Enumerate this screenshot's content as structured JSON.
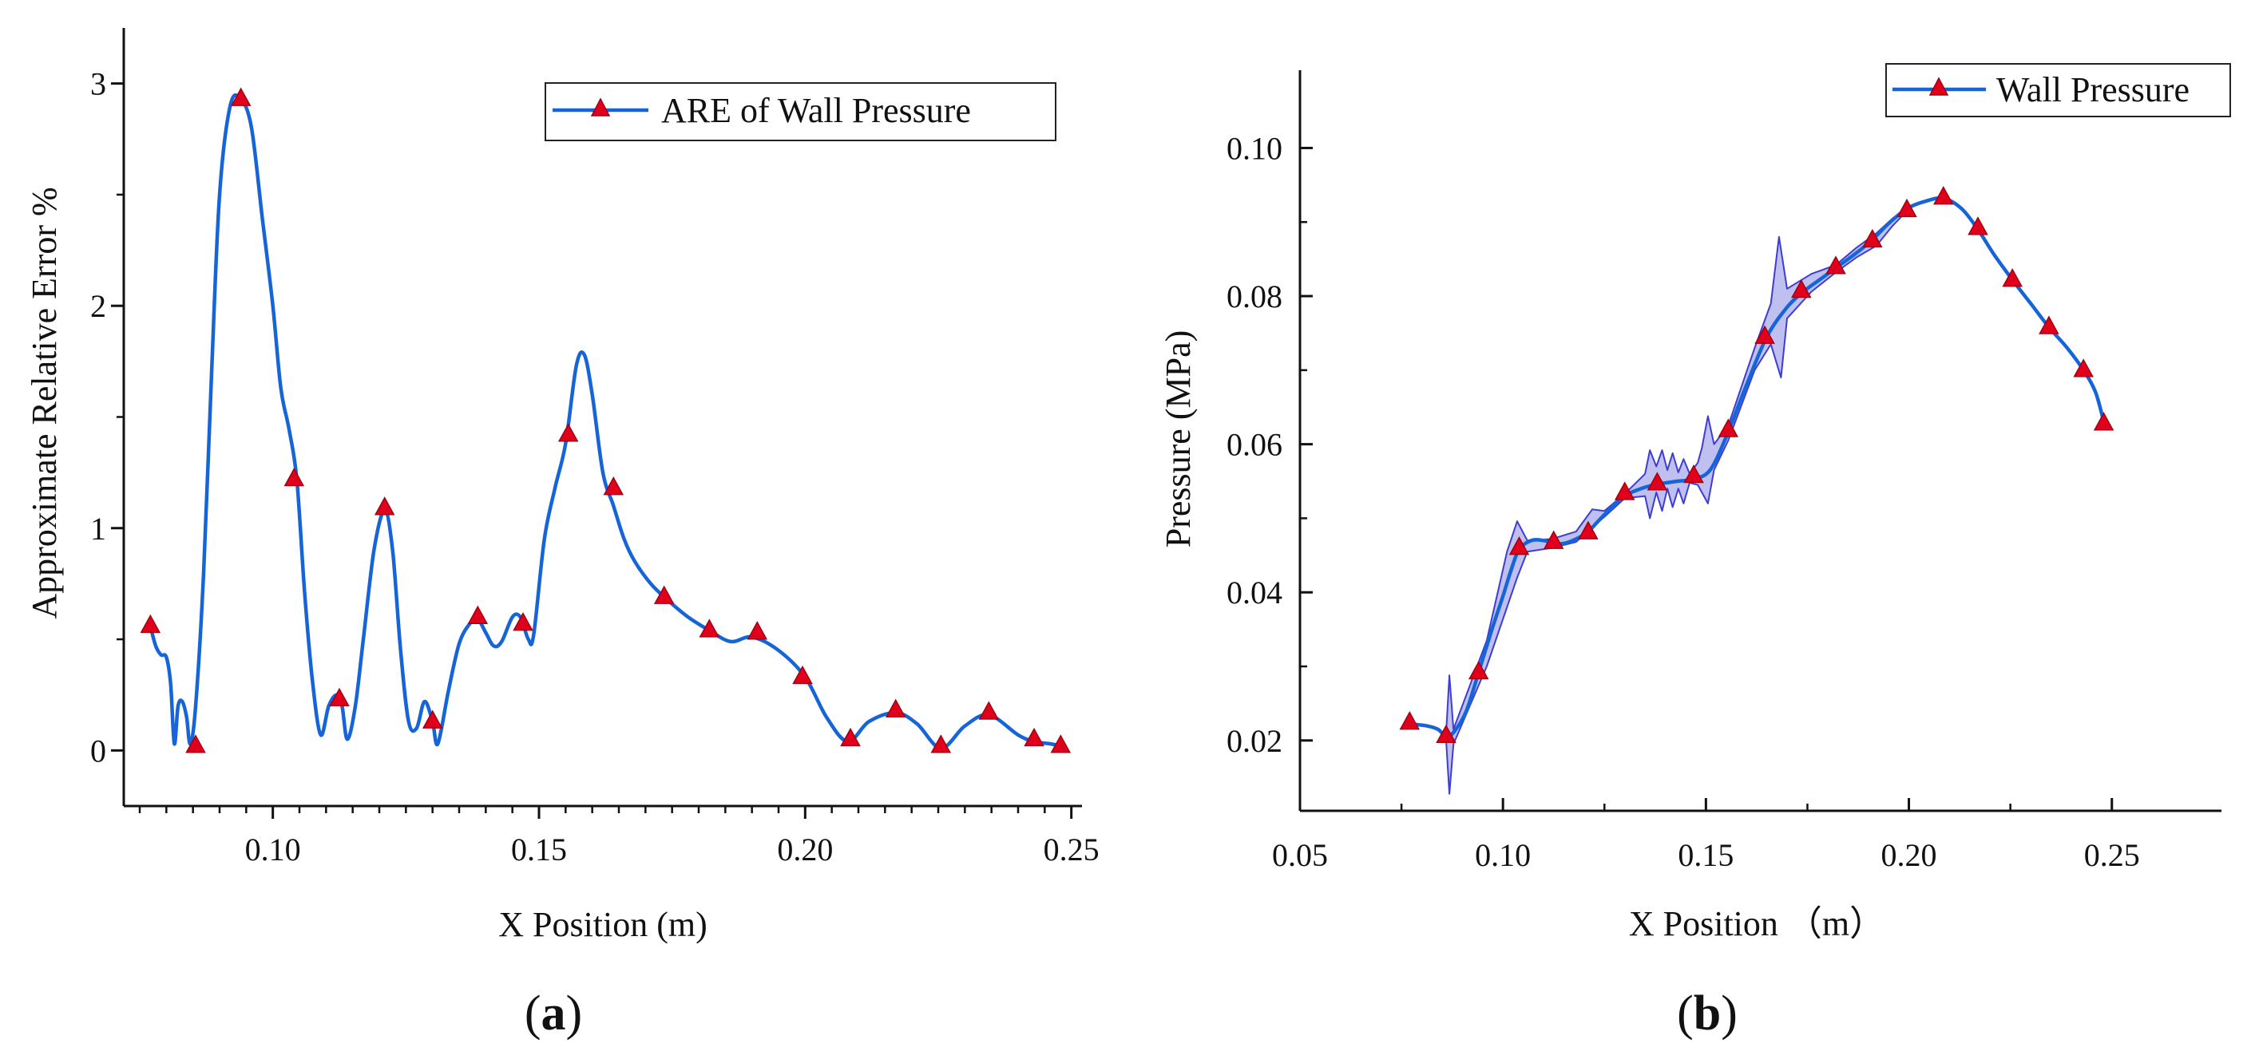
{
  "figure": {
    "panels": [
      {
        "id": "a",
        "open": "(",
        "letter": "a",
        "close": ")"
      },
      {
        "id": "b",
        "open": "(",
        "letter": "b",
        "close": ")"
      }
    ]
  },
  "colors": {
    "line": "#1565d8",
    "marker": "#e0001b",
    "marker_stroke": "#a30012",
    "band_fill": "#b8b8ee",
    "band_stroke": "#3d3dd6",
    "axis": "#111111"
  },
  "chart_data": [
    {
      "id": "a",
      "type": "line",
      "title": "",
      "xlabel": "X Position (m)",
      "ylabel": "Approximate Relative Error %",
      "xlim": [
        0.072,
        0.252
      ],
      "ylim": [
        -0.25,
        3.25
      ],
      "xticks": [
        0.1,
        0.15,
        0.2,
        0.25
      ],
      "xtick_labels": [
        "0.10",
        "0.15",
        "0.20",
        "0.25"
      ],
      "xminor": [
        0.075,
        0.08,
        0.085,
        0.09,
        0.095,
        0.105,
        0.11,
        0.115,
        0.12,
        0.125,
        0.13,
        0.135,
        0.14,
        0.145,
        0.155,
        0.16,
        0.165,
        0.17,
        0.175,
        0.18,
        0.185,
        0.19,
        0.195,
        0.205,
        0.21,
        0.215,
        0.22,
        0.225,
        0.23,
        0.235,
        0.24,
        0.245
      ],
      "yticks": [
        0,
        1,
        2,
        3
      ],
      "ytick_labels": [
        "0",
        "1",
        "2",
        "3"
      ],
      "yminor": [
        0.5,
        1.5,
        2.5
      ],
      "legend": {
        "label": "ARE of Wall Pressure",
        "position": "top-right"
      },
      "series": [
        {
          "name": "ARE of Wall Pressure",
          "curve": [
            [
              0.077,
              0.56
            ],
            [
              0.078,
              0.47
            ],
            [
              0.079,
              0.43
            ],
            [
              0.08,
              0.42
            ],
            [
              0.0808,
              0.3
            ],
            [
              0.0815,
              0.03
            ],
            [
              0.0822,
              0.2
            ],
            [
              0.083,
              0.22
            ],
            [
              0.0838,
              0.15
            ],
            [
              0.0845,
              0.03
            ],
            [
              0.0855,
              0.2
            ],
            [
              0.087,
              0.8
            ],
            [
              0.0885,
              1.7
            ],
            [
              0.09,
              2.5
            ],
            [
              0.092,
              2.9
            ],
            [
              0.094,
              2.93
            ],
            [
              0.096,
              2.8
            ],
            [
              0.098,
              2.4
            ],
            [
              0.1,
              2.0
            ],
            [
              0.1015,
              1.63
            ],
            [
              0.103,
              1.45
            ],
            [
              0.1045,
              1.22
            ],
            [
              0.106,
              0.7
            ],
            [
              0.1075,
              0.3
            ],
            [
              0.109,
              0.07
            ],
            [
              0.1105,
              0.2
            ],
            [
              0.112,
              0.25
            ],
            [
              0.113,
              0.2
            ],
            [
              0.114,
              0.05
            ],
            [
              0.1155,
              0.2
            ],
            [
              0.117,
              0.5
            ],
            [
              0.119,
              0.9
            ],
            [
              0.121,
              1.08
            ],
            [
              0.1225,
              0.9
            ],
            [
              0.124,
              0.45
            ],
            [
              0.1255,
              0.13
            ],
            [
              0.127,
              0.1
            ],
            [
              0.1285,
              0.22
            ],
            [
              0.13,
              0.13
            ],
            [
              0.131,
              0.03
            ],
            [
              0.133,
              0.27
            ],
            [
              0.135,
              0.48
            ],
            [
              0.137,
              0.57
            ],
            [
              0.1385,
              0.59
            ],
            [
              0.14,
              0.53
            ],
            [
              0.1415,
              0.47
            ],
            [
              0.143,
              0.49
            ],
            [
              0.145,
              0.6
            ],
            [
              0.1465,
              0.6
            ],
            [
              0.148,
              0.5
            ],
            [
              0.149,
              0.52
            ],
            [
              0.151,
              0.95
            ],
            [
              0.153,
              1.18
            ],
            [
              0.155,
              1.38
            ],
            [
              0.157,
              1.73
            ],
            [
              0.1585,
              1.78
            ],
            [
              0.16,
              1.6
            ],
            [
              0.162,
              1.25
            ],
            [
              0.164,
              1.1
            ],
            [
              0.166,
              0.95
            ],
            [
              0.168,
              0.85
            ],
            [
              0.171,
              0.75
            ],
            [
              0.174,
              0.68
            ],
            [
              0.178,
              0.6
            ],
            [
              0.182,
              0.54
            ],
            [
              0.186,
              0.49
            ],
            [
              0.19,
              0.51
            ],
            [
              0.195,
              0.45
            ],
            [
              0.2,
              0.33
            ],
            [
              0.204,
              0.15
            ],
            [
              0.208,
              0.04
            ],
            [
              0.212,
              0.13
            ],
            [
              0.217,
              0.17
            ],
            [
              0.221,
              0.12
            ],
            [
              0.2255,
              0.01
            ],
            [
              0.23,
              0.11
            ],
            [
              0.2345,
              0.16
            ],
            [
              0.24,
              0.07
            ],
            [
              0.243,
              0.04
            ],
            [
              0.246,
              0.03
            ],
            [
              0.248,
              0.02
            ]
          ],
          "markers": [
            [
              0.077,
              0.56
            ],
            [
              0.0855,
              0.02
            ],
            [
              0.094,
              2.93
            ],
            [
              0.104,
              1.22
            ],
            [
              0.1125,
              0.23
            ],
            [
              0.121,
              1.09
            ],
            [
              0.13,
              0.13
            ],
            [
              0.1385,
              0.6
            ],
            [
              0.147,
              0.57
            ],
            [
              0.1555,
              1.42
            ],
            [
              0.164,
              1.18
            ],
            [
              0.1735,
              0.69
            ],
            [
              0.182,
              0.54
            ],
            [
              0.191,
              0.53
            ],
            [
              0.1995,
              0.33
            ],
            [
              0.2085,
              0.05
            ],
            [
              0.217,
              0.18
            ],
            [
              0.2255,
              0.02
            ],
            [
              0.2345,
              0.17
            ],
            [
              0.243,
              0.05
            ],
            [
              0.248,
              0.02
            ]
          ]
        }
      ]
    },
    {
      "id": "b",
      "type": "line",
      "title": "",
      "xlabel": "X Position （m）",
      "ylabel": "Pressure (MPa)",
      "xlim": [
        0.05,
        0.277
      ],
      "ylim": [
        0.0105,
        0.1105
      ],
      "xticks": [
        0.05,
        0.1,
        0.15,
        0.2,
        0.25
      ],
      "xtick_labels": [
        "0.05",
        "0.10",
        "0.15",
        "0.20",
        "0.25"
      ],
      "xminor": [
        0.075,
        0.125,
        0.175,
        0.225
      ],
      "yticks": [
        0.02,
        0.04,
        0.06,
        0.08,
        0.1
      ],
      "ytick_labels": [
        "0.02",
        "0.04",
        "0.06",
        "0.08",
        "0.10"
      ],
      "yminor": [
        0.03,
        0.05,
        0.07,
        0.09
      ],
      "legend": {
        "label": "Wall Pressure",
        "position": "top-right"
      },
      "series": [
        {
          "name": "Wall Pressure",
          "curve": [
            [
              0.077,
              0.0222
            ],
            [
              0.081,
              0.022
            ],
            [
              0.084,
              0.0215
            ],
            [
              0.086,
              0.0205
            ],
            [
              0.088,
              0.0212
            ],
            [
              0.091,
              0.024
            ],
            [
              0.094,
              0.0292
            ],
            [
              0.097,
              0.0345
            ],
            [
              0.1,
              0.0395
            ],
            [
              0.102,
              0.043
            ],
            [
              0.104,
              0.0458
            ],
            [
              0.107,
              0.047
            ],
            [
              0.11,
              0.047
            ],
            [
              0.1125,
              0.0466
            ],
            [
              0.115,
              0.0466
            ],
            [
              0.118,
              0.0472
            ],
            [
              0.121,
              0.0482
            ],
            [
              0.125,
              0.0505
            ],
            [
              0.13,
              0.053
            ],
            [
              0.134,
              0.054
            ],
            [
              0.138,
              0.0546
            ],
            [
              0.143,
              0.055
            ],
            [
              0.147,
              0.0553
            ],
            [
              0.151,
              0.0565
            ],
            [
              0.155,
              0.061
            ],
            [
              0.16,
              0.068
            ],
            [
              0.165,
              0.0745
            ],
            [
              0.17,
              0.0785
            ],
            [
              0.174,
              0.0806
            ],
            [
              0.178,
              0.0822
            ],
            [
              0.182,
              0.0838
            ],
            [
              0.187,
              0.0858
            ],
            [
              0.191,
              0.0876
            ],
            [
              0.195,
              0.0898
            ],
            [
              0.1995,
              0.0918
            ],
            [
              0.204,
              0.0928
            ],
            [
              0.2085,
              0.0932
            ],
            [
              0.213,
              0.0918
            ],
            [
              0.217,
              0.089
            ],
            [
              0.221,
              0.0856
            ],
            [
              0.2255,
              0.0822
            ],
            [
              0.23,
              0.079
            ],
            [
              0.2345,
              0.0758
            ],
            [
              0.239,
              0.073
            ],
            [
              0.243,
              0.07
            ],
            [
              0.246,
              0.067
            ],
            [
              0.248,
              0.063
            ]
          ],
          "markers": [
            [
              0.077,
              0.0224
            ],
            [
              0.086,
              0.0206
            ],
            [
              0.094,
              0.0292
            ],
            [
              0.104,
              0.046
            ],
            [
              0.1125,
              0.0468
            ],
            [
              0.121,
              0.0481
            ],
            [
              0.13,
              0.0534
            ],
            [
              0.138,
              0.0547
            ],
            [
              0.147,
              0.0557
            ],
            [
              0.1555,
              0.0619
            ],
            [
              0.1645,
              0.0745
            ],
            [
              0.1735,
              0.0807
            ],
            [
              0.182,
              0.0839
            ],
            [
              0.191,
              0.0875
            ],
            [
              0.1995,
              0.0916
            ],
            [
              0.2085,
              0.0933
            ],
            [
              0.217,
              0.0892
            ],
            [
              0.2255,
              0.0822
            ],
            [
              0.2345,
              0.0758
            ],
            [
              0.243,
              0.07
            ],
            [
              0.248,
              0.0628
            ]
          ],
          "band_upper": [
            [
              0.086,
              0.021
            ],
            [
              0.0868,
              0.0288
            ],
            [
              0.0878,
              0.0215
            ],
            [
              0.096,
              0.0335
            ],
            [
              0.101,
              0.0455
            ],
            [
              0.1035,
              0.0496
            ],
            [
              0.106,
              0.047
            ],
            [
              0.112,
              0.0472
            ],
            [
              0.118,
              0.0482
            ],
            [
              0.122,
              0.0512
            ],
            [
              0.125,
              0.051
            ],
            [
              0.13,
              0.0533
            ],
            [
              0.135,
              0.056
            ],
            [
              0.1362,
              0.0592
            ],
            [
              0.1378,
              0.057
            ],
            [
              0.1392,
              0.0592
            ],
            [
              0.1405,
              0.0565
            ],
            [
              0.1418,
              0.0588
            ],
            [
              0.1432,
              0.0562
            ],
            [
              0.1445,
              0.058
            ],
            [
              0.146,
              0.056
            ],
            [
              0.148,
              0.0575
            ],
            [
              0.149,
              0.0595
            ],
            [
              0.1505,
              0.0638
            ],
            [
              0.152,
              0.06
            ],
            [
              0.1555,
              0.0625
            ],
            [
              0.162,
              0.073
            ],
            [
              0.166,
              0.079
            ],
            [
              0.168,
              0.088
            ],
            [
              0.17,
              0.081
            ],
            [
              0.176,
              0.083
            ],
            [
              0.182,
              0.0842
            ],
            [
              0.187,
              0.0865
            ],
            [
              0.192,
              0.0885
            ],
            [
              0.196,
              0.0905
            ],
            [
              0.1995,
              0.0918
            ]
          ],
          "band_lower": [
            [
              0.1995,
              0.0915
            ],
            [
              0.196,
              0.0895
            ],
            [
              0.192,
              0.0868
            ],
            [
              0.187,
              0.0852
            ],
            [
              0.182,
              0.0832
            ],
            [
              0.176,
              0.0806
            ],
            [
              0.17,
              0.077
            ],
            [
              0.1685,
              0.069
            ],
            [
              0.166,
              0.0735
            ],
            [
              0.162,
              0.07
            ],
            [
              0.1555,
              0.0605
            ],
            [
              0.152,
              0.0565
            ],
            [
              0.1505,
              0.052
            ],
            [
              0.149,
              0.0535
            ],
            [
              0.148,
              0.0545
            ],
            [
              0.146,
              0.0548
            ],
            [
              0.1445,
              0.052
            ],
            [
              0.1432,
              0.054
            ],
            [
              0.1418,
              0.0515
            ],
            [
              0.1405,
              0.054
            ],
            [
              0.1392,
              0.051
            ],
            [
              0.1378,
              0.0535
            ],
            [
              0.1362,
              0.05
            ],
            [
              0.135,
              0.053
            ],
            [
              0.13,
              0.0527
            ],
            [
              0.125,
              0.0502
            ],
            [
              0.122,
              0.0488
            ],
            [
              0.118,
              0.0468
            ],
            [
              0.112,
              0.046
            ],
            [
              0.106,
              0.0455
            ],
            [
              0.1035,
              0.042
            ],
            [
              0.101,
              0.038
            ],
            [
              0.096,
              0.03
            ],
            [
              0.0878,
              0.0195
            ],
            [
              0.0868,
              0.0128
            ],
            [
              0.086,
              0.02
            ]
          ]
        }
      ]
    }
  ]
}
